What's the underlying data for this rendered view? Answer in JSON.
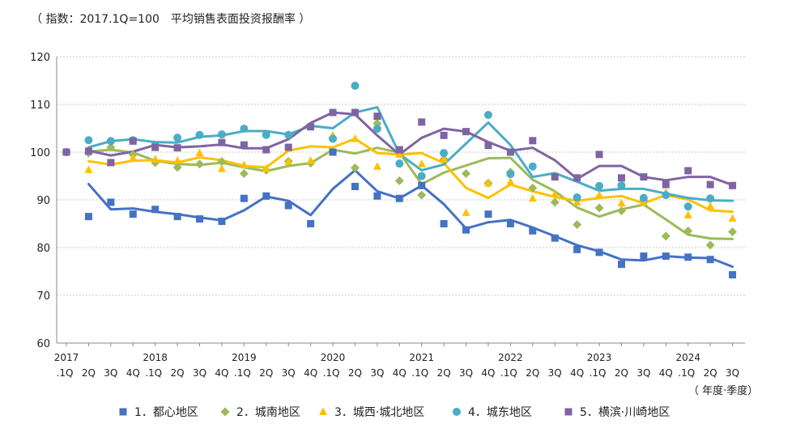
{
  "chart_data": {
    "type": "line",
    "title": "",
    "note": "（ 指数：2017.1Q=100　平均销售表面投资报酬率 ）",
    "unit_label": "（ 年度·季度）",
    "y_ticks": [
      "60",
      "70",
      "80",
      "90",
      "100",
      "110",
      "120"
    ],
    "ylim": [
      60,
      120
    ],
    "grid": true,
    "legend_position": "bottom",
    "year_labels": [
      "2017",
      "2018",
      "2019",
      "2020",
      "2021",
      "2022",
      "2023",
      "2024"
    ],
    "x": [
      ".1Q",
      "2Q",
      "3Q",
      "4Q",
      ".1Q",
      "2Q",
      "3Q",
      "4Q",
      ".1Q",
      "2Q",
      "3Q",
      "4Q",
      ".1Q",
      "2Q",
      "3Q",
      "4Q",
      ".1Q",
      "2Q",
      "3Q",
      "4Q",
      ".1Q",
      "2Q",
      "3Q",
      "4Q",
      ".1Q",
      "2Q",
      "3Q",
      "4Q",
      ".1Q",
      "2Q",
      "3Q"
    ],
    "series": [
      {
        "name": "1．都心地区",
        "color": "#4472C4",
        "marker": "square",
        "points": [
          100,
          86.5,
          89.5,
          87,
          88,
          86.5,
          86,
          85.5,
          90.3,
          90.8,
          88.8,
          85,
          100,
          92.8,
          90.8,
          90.3,
          93,
          85,
          83.7,
          87,
          85,
          83.5,
          82,
          79.6,
          79,
          76.5,
          78.2,
          78.2,
          78,
          77.5,
          74.3
        ],
        "trend": [
          null,
          93.3,
          88,
          88.2,
          87.5,
          87,
          86.3,
          85.7,
          87.8,
          90.7,
          89.8,
          86.8,
          92.3,
          96.2,
          91.8,
          90.3,
          93,
          89.1,
          84,
          85.3,
          85.8,
          84.2,
          82.4,
          80.5,
          79.2,
          77.5,
          77.3,
          78.2,
          77.9,
          77.8,
          76
        ]
      },
      {
        "name": "2．城南地区",
        "color": "#9BBB59",
        "marker": "diamond",
        "points": [
          100,
          99.8,
          101,
          99.5,
          97.8,
          96.8,
          97.5,
          98,
          95.5,
          96.2,
          98.1,
          97.7,
          103,
          96.7,
          106,
          94,
          91,
          98.5,
          95.5,
          93.5,
          95.8,
          92.5,
          89.5,
          84.8,
          88.3,
          87.7,
          89.8,
          82.4,
          83.5,
          80.5,
          83.3
        ],
        "trend": [
          null,
          100.1,
          100.5,
          99.9,
          98.2,
          97.5,
          97.3,
          97.8,
          96.8,
          96,
          97.1,
          97.7,
          100.5,
          99.7,
          100.9,
          99.9,
          93.3,
          95.7,
          97.2,
          98.7,
          98.8,
          94.2,
          91.8,
          88.4,
          86.5,
          88,
          89,
          85.9,
          82.7,
          81.9,
          81.8
        ]
      },
      {
        "name": "3．城西·城北地区",
        "color": "#FFC000",
        "marker": "triangle",
        "points": [
          100,
          96.3,
          97.8,
          98.8,
          98.5,
          98.2,
          99.8,
          96.5,
          97.3,
          96.5,
          98,
          98.2,
          103.5,
          102.8,
          97,
          99.5,
          97.5,
          98.5,
          87.3,
          93.5,
          93.8,
          90.3,
          91.2,
          89.5,
          91,
          89.3,
          89.5,
          91.5,
          86.8,
          88.7,
          86.1
        ],
        "trend": [
          null,
          98.1,
          97.4,
          98.2,
          98.3,
          97.8,
          98.9,
          98.3,
          97.1,
          96.8,
          100.3,
          101.2,
          101,
          102.8,
          99.8,
          99.5,
          99.8,
          97.7,
          92.5,
          90.4,
          93.2,
          91.8,
          90.6,
          89.8,
          90.4,
          90.8,
          89.3,
          91,
          90.1,
          87.8,
          87.5
        ]
      },
      {
        "name": "4．城东地区",
        "color": "#4BACC6",
        "marker": "circle",
        "points": [
          100,
          102.5,
          102.3,
          102.5,
          101.5,
          103,
          103.6,
          103.7,
          104.9,
          103.6,
          103.6,
          102.8,
          113.9,
          104.9,
          97.6,
          95,
          99.8,
          107.8,
          95.4,
          97,
          90.5,
          92.9,
          93,
          90.4,
          91,
          88.6,
          90.3
        ],
        "points_index": [
          0,
          1,
          2,
          3,
          4,
          5,
          6,
          7,
          8,
          9,
          10,
          12,
          13,
          14,
          15,
          16,
          17,
          19,
          20,
          21,
          23,
          24,
          25,
          26,
          27,
          28,
          29
        ],
        "trend": [
          null,
          101,
          102.3,
          102.7,
          102.1,
          102,
          103.2,
          103.5,
          104.4,
          104.4,
          103.7,
          105.5,
          105,
          108.3,
          109.4,
          99.6,
          96.2,
          97.4,
          101.8,
          106.2,
          101.5,
          94.8,
          95.6,
          93.8,
          91.9,
          92.3,
          92.3,
          91.3,
          90.4,
          89.9,
          89.8
        ]
      },
      {
        "name": "5．横滨·川崎地区",
        "color": "#8064A2",
        "marker": "square",
        "points": [
          100,
          100.2,
          97.8,
          102.3,
          101,
          100.9,
          102,
          101.5,
          100.5,
          101,
          105.3,
          108.3,
          108.3,
          107.5,
          100.5,
          106.3,
          103.5,
          104.3,
          101.4,
          100,
          102.4,
          94.8,
          94.6,
          99.5,
          94.6,
          94.8,
          93.2,
          96.1,
          93.2,
          93
        ],
        "points_index": [
          0,
          1,
          2,
          3,
          4,
          5,
          7,
          8,
          9,
          10,
          11,
          12,
          13,
          14,
          15,
          16,
          17,
          18,
          19,
          20,
          21,
          22,
          23,
          24,
          25,
          26,
          27,
          28,
          29,
          30
        ],
        "trend": [
          null,
          100.3,
          99.3,
          100.1,
          101.5,
          101,
          101.2,
          101.6,
          100.8,
          100.8,
          102.7,
          106.1,
          108.3,
          107.9,
          103.5,
          99.5,
          103,
          104.9,
          104.3,
          102.1,
          100.3,
          100.9,
          98.3,
          94.4,
          97.1,
          97.1,
          94.8,
          94.1,
          94.8,
          94.8,
          93.1
        ]
      }
    ]
  }
}
